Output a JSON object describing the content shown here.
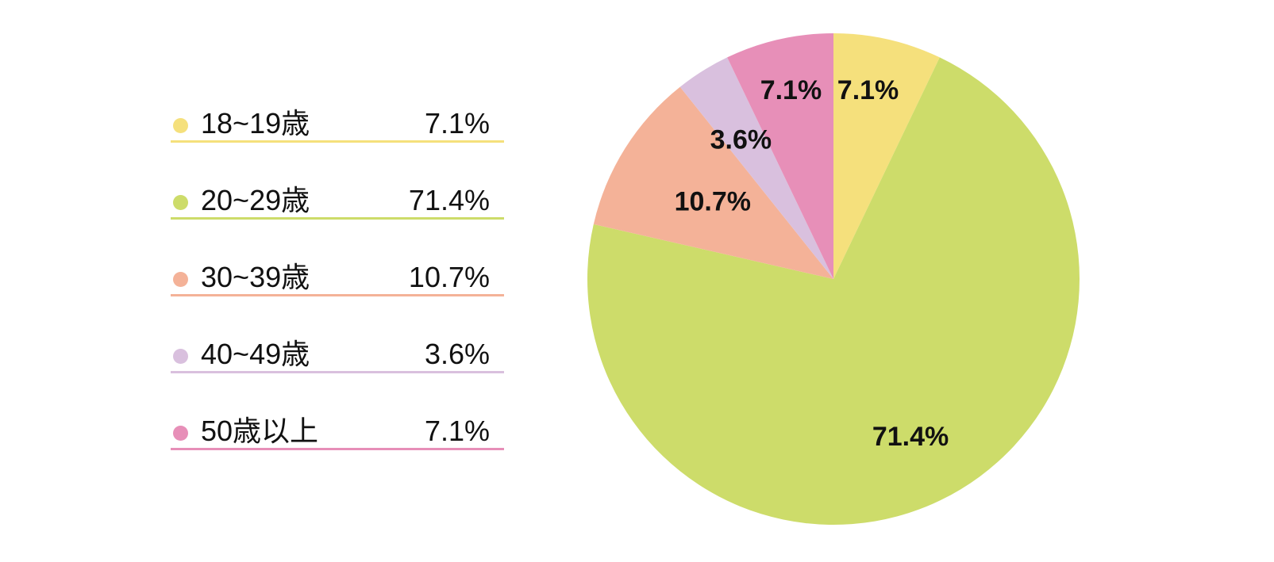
{
  "chart_data": {
    "type": "pie",
    "title": "",
    "categories": [
      "18~19歳",
      "20~29歳",
      "30~39歳",
      "40~49歳",
      "50歳以上"
    ],
    "values": [
      7.1,
      71.4,
      10.7,
      3.6,
      7.1
    ],
    "value_labels": [
      "7.1%",
      "71.4%",
      "10.7%",
      "3.6%",
      "7.1%"
    ],
    "colors": [
      "#f5e07c",
      "#cddc6a",
      "#f4b298",
      "#d9c0de",
      "#e78fb8"
    ],
    "start_angle": "12 o'clock",
    "direction": "clockwise",
    "legend_position": "left"
  },
  "legend": {
    "items": [
      {
        "label": "18~19歳",
        "value": "7.1%",
        "color": "#f5e07c"
      },
      {
        "label": "20~29歳",
        "value": "71.4%",
        "color": "#cddc6a"
      },
      {
        "label": "30~39歳",
        "value": "10.7%",
        "color": "#f4b298"
      },
      {
        "label": "40~49歳",
        "value": "3.6%",
        "color": "#d9c0de"
      },
      {
        "label": "50歳以上",
        "value": "7.1%",
        "color": "#e78fb8"
      }
    ]
  }
}
